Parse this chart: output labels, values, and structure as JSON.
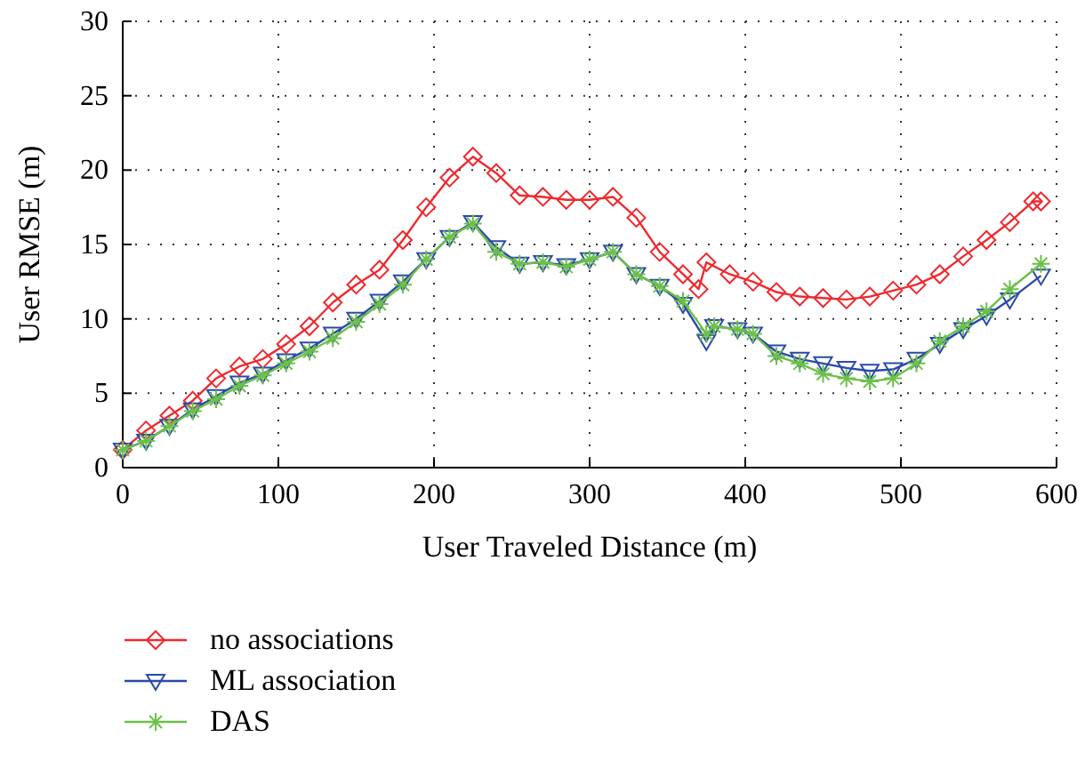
{
  "chart_data": {
    "type": "line",
    "xlabel": "User Traveled Distance (m)",
    "ylabel": "User RMSE (m)",
    "xlim": [
      0,
      600
    ],
    "xticks": [
      0,
      100,
      200,
      300,
      400,
      500,
      600
    ],
    "ylim": [
      0,
      30
    ],
    "yticks": [
      0,
      5,
      10,
      15,
      20,
      25,
      30
    ],
    "grid": true,
    "legend": "bottom left",
    "line_style": "solid",
    "series": [
      {
        "name": "no associations",
        "color": "#ee2a2f",
        "marker": "diamond",
        "x": [
          0,
          15,
          30,
          45,
          60,
          75,
          90,
          105,
          120,
          135,
          150,
          165,
          180,
          195,
          210,
          225,
          240,
          255,
          270,
          285,
          300,
          315,
          330,
          345,
          360,
          370,
          375,
          390,
          405,
          420,
          435,
          450,
          465,
          480,
          495,
          510,
          525,
          540,
          555,
          570,
          585,
          590
        ],
        "values": [
          1.2,
          2.5,
          3.5,
          4.5,
          6.0,
          6.8,
          7.3,
          8.3,
          9.5,
          11.1,
          12.3,
          13.3,
          15.3,
          17.5,
          19.5,
          20.9,
          19.8,
          18.3,
          18.2,
          18.0,
          18.0,
          18.2,
          16.8,
          14.5,
          13.0,
          12.0,
          13.8,
          13.0,
          12.5,
          11.8,
          11.5,
          11.4,
          11.3,
          11.5,
          11.9,
          12.3,
          13.0,
          14.2,
          15.3,
          16.5,
          17.9,
          17.9
        ]
      },
      {
        "name": "ML association",
        "color": "#2a4aa8",
        "marker": "triangle",
        "x": [
          0,
          15,
          30,
          45,
          60,
          75,
          90,
          105,
          120,
          135,
          150,
          165,
          180,
          195,
          210,
          225,
          240,
          255,
          270,
          285,
          300,
          315,
          330,
          345,
          360,
          375,
          380,
          395,
          405,
          420,
          435,
          450,
          465,
          480,
          495,
          510,
          525,
          540,
          555,
          570,
          590
        ],
        "values": [
          1.2,
          1.8,
          2.8,
          3.9,
          4.8,
          5.7,
          6.3,
          7.2,
          8.0,
          9.0,
          10.0,
          11.2,
          12.5,
          14.0,
          15.5,
          16.5,
          14.8,
          13.7,
          13.8,
          13.6,
          14.0,
          14.5,
          13.0,
          12.2,
          11.0,
          8.5,
          9.5,
          9.3,
          9.0,
          7.8,
          7.3,
          7.0,
          6.7,
          6.5,
          6.6,
          7.3,
          8.3,
          9.3,
          10.2,
          11.3,
          12.9
        ]
      },
      {
        "name": "DAS",
        "color": "#6cc04a",
        "marker": "cross",
        "x": [
          0,
          15,
          30,
          45,
          60,
          75,
          90,
          105,
          120,
          135,
          150,
          165,
          180,
          195,
          210,
          225,
          240,
          255,
          270,
          285,
          300,
          315,
          330,
          345,
          360,
          375,
          380,
          395,
          405,
          420,
          435,
          450,
          465,
          480,
          495,
          510,
          525,
          540,
          555,
          570,
          590
        ],
        "values": [
          1.2,
          1.8,
          2.8,
          3.8,
          4.6,
          5.5,
          6.2,
          7.0,
          7.8,
          8.7,
          9.8,
          11.0,
          12.3,
          14.0,
          15.5,
          16.4,
          14.5,
          13.7,
          13.8,
          13.5,
          14.0,
          14.5,
          13.0,
          12.2,
          11.2,
          9.0,
          9.5,
          9.3,
          9.0,
          7.5,
          7.0,
          6.3,
          6.0,
          5.8,
          6.0,
          7.0,
          8.5,
          9.5,
          10.5,
          12.0,
          13.7
        ]
      }
    ]
  }
}
